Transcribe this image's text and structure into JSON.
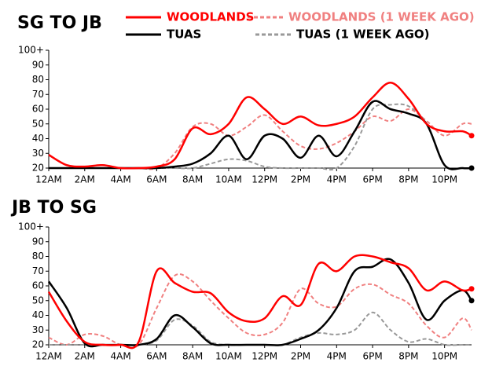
{
  "chart_data": [
    {
      "type": "line",
      "title": "SG TO JB",
      "x": [
        0,
        1,
        2,
        3,
        4,
        5,
        6,
        7,
        8,
        9,
        10,
        11,
        12,
        13,
        14,
        15,
        16,
        17,
        18,
        19,
        20,
        21,
        22,
        23,
        23.5
      ],
      "xlim": [
        0,
        23.5
      ],
      "xticks": [
        {
          "value": 0,
          "label": "12AM"
        },
        {
          "value": 2,
          "label": "2AM"
        },
        {
          "value": 4,
          "label": "4AM"
        },
        {
          "value": 6,
          "label": "6AM"
        },
        {
          "value": 8,
          "label": "8AM"
        },
        {
          "value": 10,
          "label": "10AM"
        },
        {
          "value": 12,
          "label": "12PM"
        },
        {
          "value": 14,
          "label": "2PM"
        },
        {
          "value": 16,
          "label": "4PM"
        },
        {
          "value": 18,
          "label": "6PM"
        },
        {
          "value": 20,
          "label": "8PM"
        },
        {
          "value": 22,
          "label": "10PM"
        }
      ],
      "ylim": [
        20,
        100
      ],
      "yticks": [
        20,
        30,
        40,
        50,
        60,
        70,
        80,
        90,
        {
          "value": 100,
          "label": "100+"
        }
      ],
      "series": [
        {
          "name": "WOODLANDS (1 WEEK AGO)",
          "color": "#f08080",
          "dashed": true,
          "values": [
            20,
            20,
            20,
            20,
            20,
            20,
            20,
            30,
            48,
            50,
            42,
            48,
            56,
            45,
            35,
            33,
            37,
            45,
            55,
            52,
            60,
            52,
            42,
            50,
            50
          ]
        },
        {
          "name": "TUAS (1 WEEK AGO)",
          "color": "#999999",
          "dashed": true,
          "values": [
            20,
            20,
            20,
            20,
            20,
            20,
            20,
            20,
            20,
            23,
            26,
            25,
            21,
            20,
            20,
            20,
            20,
            35,
            60,
            63,
            62,
            50,
            22,
            20,
            20
          ]
        },
        {
          "name": "TUAS",
          "color": "#000000",
          "dashed": false,
          "values": [
            20,
            20,
            20,
            20,
            20,
            20,
            20,
            21,
            23,
            30,
            42,
            26,
            42,
            40,
            27,
            42,
            28,
            45,
            65,
            60,
            57,
            50,
            22,
            20,
            20
          ]
        },
        {
          "name": "WOODLANDS",
          "color": "#ff0000",
          "dashed": false,
          "values": [
            29,
            22,
            21,
            22,
            20,
            20,
            21,
            26,
            47,
            43,
            50,
            68,
            60,
            50,
            55,
            49,
            50,
            55,
            68,
            78,
            67,
            50,
            45,
            45,
            42
          ]
        }
      ]
    },
    {
      "type": "line",
      "title": "JB TO SG",
      "x": [
        0,
        1,
        2,
        3,
        4,
        5,
        6,
        7,
        8,
        9,
        10,
        11,
        12,
        13,
        14,
        15,
        16,
        17,
        18,
        19,
        20,
        21,
        22,
        23,
        23.5
      ],
      "xlim": [
        0,
        23.5
      ],
      "xticks": [
        {
          "value": 0,
          "label": "12AM"
        },
        {
          "value": 2,
          "label": "2AM"
        },
        {
          "value": 4,
          "label": "4AM"
        },
        {
          "value": 6,
          "label": "6AM"
        },
        {
          "value": 8,
          "label": "8AM"
        },
        {
          "value": 10,
          "label": "10AM"
        },
        {
          "value": 12,
          "label": "12PM"
        },
        {
          "value": 14,
          "label": "2PM"
        },
        {
          "value": 16,
          "label": "4PM"
        },
        {
          "value": 18,
          "label": "6PM"
        },
        {
          "value": 20,
          "label": "8PM"
        },
        {
          "value": 22,
          "label": "10PM"
        }
      ],
      "ylim": [
        20,
        100
      ],
      "yticks": [
        20,
        30,
        40,
        50,
        60,
        70,
        80,
        90,
        {
          "value": 100,
          "label": "100+"
        }
      ],
      "series": [
        {
          "color": "#f08080",
          "dashed": true,
          "values": [
            25,
            20,
            27,
            26,
            20,
            20,
            45,
            67,
            63,
            50,
            38,
            28,
            27,
            35,
            58,
            48,
            46,
            58,
            61,
            54,
            48,
            33,
            25,
            38,
            30
          ]
        },
        {
          "color": "#999999",
          "dashed": true,
          "values": [
            20,
            20,
            20,
            20,
            20,
            20,
            23,
            37,
            33,
            22,
            20,
            20,
            20,
            20,
            25,
            28,
            27,
            30,
            42,
            30,
            22,
            24,
            20,
            20,
            20
          ]
        },
        {
          "color": "#000000",
          "dashed": false,
          "values": [
            63,
            45,
            21,
            20,
            20,
            20,
            24,
            40,
            32,
            21,
            20,
            20,
            20,
            20,
            24,
            30,
            45,
            70,
            73,
            78,
            62,
            37,
            50,
            57,
            50
          ]
        },
        {
          "color": "#ff0000",
          "dashed": false,
          "values": [
            56,
            36,
            22,
            20,
            20,
            22,
            70,
            62,
            56,
            55,
            42,
            36,
            38,
            53,
            47,
            75,
            70,
            80,
            80,
            76,
            72,
            57,
            63,
            57,
            58
          ]
        }
      ]
    }
  ]
}
